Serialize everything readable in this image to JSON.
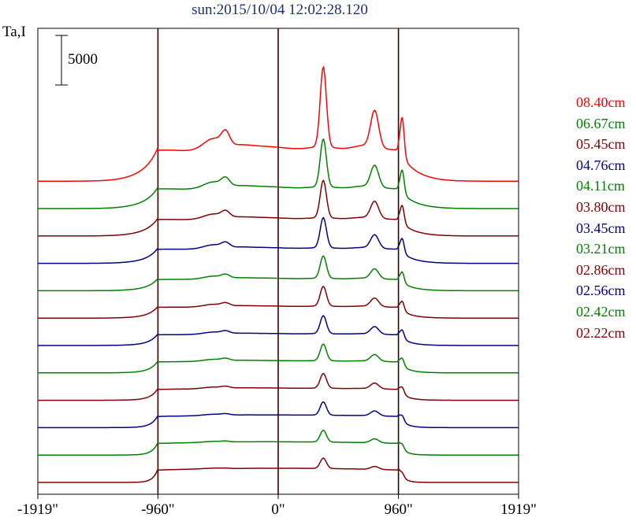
{
  "title": "sun:2015/10/04 12:02:28.120",
  "chart_data": {
    "type": "line",
    "title": "sun:2015/10/04 12:02:28.120",
    "ylabel": "Ta,I",
    "xlabel": "",
    "x_ticks": [
      "-1919\"",
      "-960\"",
      "0\"",
      "960\"",
      "1919\""
    ],
    "x_tick_values": [
      -1919,
      -960,
      0,
      960,
      1919
    ],
    "xlim": [
      -1919,
      1919
    ],
    "reference_lines_x": [
      -960,
      0,
      960
    ],
    "scale_bar": {
      "label": "5000",
      "value": 5000
    },
    "grid": false,
    "legend_position": "right",
    "series": [
      {
        "name": "08.40cm",
        "color": "#ff0000",
        "offset_level": 11,
        "peak_amplitude": 11500
      },
      {
        "name": "06.67cm",
        "color": "#008000",
        "offset_level": 10,
        "peak_amplitude": 7000
      },
      {
        "name": "05.45cm",
        "color": "#800000",
        "offset_level": 9,
        "peak_amplitude": 5600
      },
      {
        "name": "04.76cm",
        "color": "#000080",
        "offset_level": 8,
        "peak_amplitude": 4600
      },
      {
        "name": "04.11cm",
        "color": "#008000",
        "offset_level": 7,
        "peak_amplitude": 3500
      },
      {
        "name": "03.80cm",
        "color": "#800000",
        "offset_level": 6,
        "peak_amplitude": 3200
      },
      {
        "name": "03.45cm",
        "color": "#000080",
        "offset_level": 5,
        "peak_amplitude": 3000
      },
      {
        "name": "03.21cm",
        "color": "#008000",
        "offset_level": 4,
        "peak_amplitude": 2900
      },
      {
        "name": "02.86cm",
        "color": "#800000",
        "offset_level": 3,
        "peak_amplitude": 2700
      },
      {
        "name": "02.56cm",
        "color": "#000080",
        "offset_level": 2,
        "peak_amplitude": 2600
      },
      {
        "name": "02.42cm",
        "color": "#008000",
        "offset_level": 1,
        "peak_amplitude": 2500
      },
      {
        "name": "02.22cm",
        "color": "#800000",
        "offset_level": 0,
        "peak_amplitude": 2450
      }
    ]
  }
}
